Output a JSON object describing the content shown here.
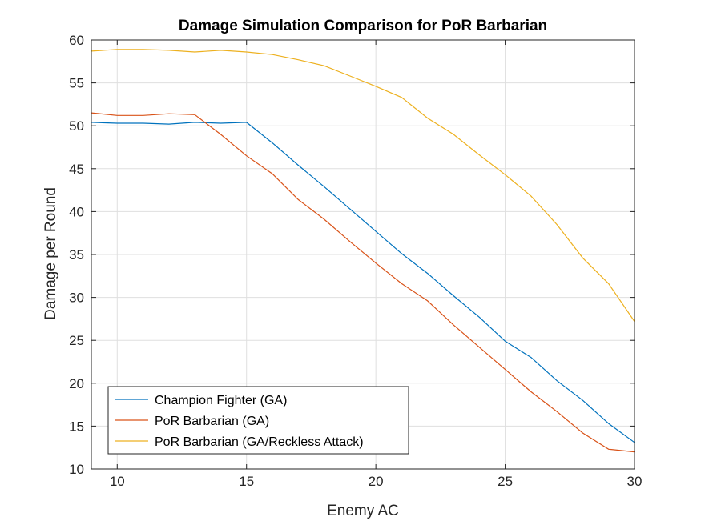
{
  "chart_data": {
    "type": "line",
    "title": "Damage Simulation Comparison for PoR Barbarian",
    "xlabel": "Enemy AC",
    "ylabel": "Damage per Round",
    "xlim": [
      9,
      30
    ],
    "ylim": [
      10,
      60
    ],
    "xticks": [
      10,
      15,
      20,
      25,
      30
    ],
    "yticks": [
      10,
      15,
      20,
      25,
      30,
      35,
      40,
      45,
      50,
      55,
      60
    ],
    "grid": true,
    "legend_position": "bottom-left",
    "x": [
      9,
      10,
      11,
      12,
      13,
      14,
      15,
      16,
      17,
      18,
      19,
      20,
      21,
      22,
      23,
      24,
      25,
      26,
      27,
      28,
      29,
      30
    ],
    "series": [
      {
        "name": "Champion Fighter (GA)",
        "color": "#0072BD",
        "values": [
          50.4,
          50.3,
          50.3,
          50.2,
          50.4,
          50.3,
          50.4,
          48.0,
          45.4,
          42.9,
          40.3,
          37.7,
          35.1,
          32.8,
          30.2,
          27.7,
          24.9,
          23.0,
          20.3,
          18.0,
          15.3,
          13.1
        ]
      },
      {
        "name": "PoR Barbarian (GA)",
        "color": "#D95319",
        "values": [
          51.5,
          51.2,
          51.2,
          51.4,
          51.3,
          49.0,
          46.5,
          44.4,
          41.4,
          39.1,
          36.5,
          34.0,
          31.6,
          29.6,
          26.8,
          24.2,
          21.6,
          19.0,
          16.7,
          14.2,
          12.3,
          12.0
        ]
      },
      {
        "name": "PoR Barbarian (GA/Reckless Attack)",
        "color": "#EDB120",
        "values": [
          58.7,
          58.9,
          58.9,
          58.8,
          58.6,
          58.8,
          58.6,
          58.3,
          57.7,
          57.0,
          55.8,
          54.6,
          53.3,
          50.9,
          49.0,
          46.6,
          44.3,
          41.8,
          38.5,
          34.6,
          31.6,
          27.2
        ]
      }
    ]
  }
}
